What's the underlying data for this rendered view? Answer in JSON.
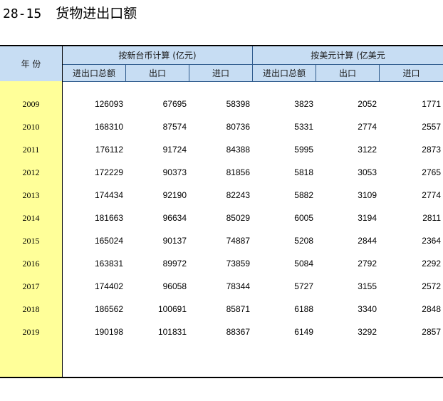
{
  "title": {
    "number": "28-15",
    "text": "货物进出口额"
  },
  "header": {
    "year_label": "年 份",
    "group_twd": "按新台币计算 (亿元)",
    "group_usd": "按美元计算 (亿美元",
    "cols": [
      "进出口总额",
      "出口",
      "进口",
      "进出口总额",
      "出口",
      "进口"
    ]
  },
  "rows": [
    {
      "year": "2009",
      "vals": [
        "126093",
        "67695",
        "58398",
        "3823",
        "2052",
        "1771"
      ]
    },
    {
      "year": "2010",
      "vals": [
        "168310",
        "87574",
        "80736",
        "5331",
        "2774",
        "2557"
      ]
    },
    {
      "year": "2011",
      "vals": [
        "176112",
        "91724",
        "84388",
        "5995",
        "3122",
        "2873"
      ]
    },
    {
      "year": "2012",
      "vals": [
        "172229",
        "90373",
        "81856",
        "5818",
        "3053",
        "2765"
      ]
    },
    {
      "year": "2013",
      "vals": [
        "174434",
        "92190",
        "82243",
        "5882",
        "3109",
        "2774"
      ]
    },
    {
      "year": "2014",
      "vals": [
        "181663",
        "96634",
        "85029",
        "6005",
        "3194",
        "2811"
      ]
    },
    {
      "year": "2015",
      "vals": [
        "165024",
        "90137",
        "74887",
        "5208",
        "2844",
        "2364"
      ]
    },
    {
      "year": "2016",
      "vals": [
        "163831",
        "89972",
        "73859",
        "5084",
        "2792",
        "2292"
      ]
    },
    {
      "year": "2017",
      "vals": [
        "174402",
        "96058",
        "78344",
        "5727",
        "3155",
        "2572"
      ]
    },
    {
      "year": "2018",
      "vals": [
        "186562",
        "100691",
        "85871",
        "6188",
        "3340",
        "2848"
      ]
    },
    {
      "year": "2019",
      "vals": [
        "190198",
        "101831",
        "88367",
        "6149",
        "3292",
        "2857"
      ]
    }
  ],
  "colors": {
    "header_bg": "#c7ddf3",
    "year_bg": "#ffff99",
    "grid": "#2e5a8c"
  }
}
